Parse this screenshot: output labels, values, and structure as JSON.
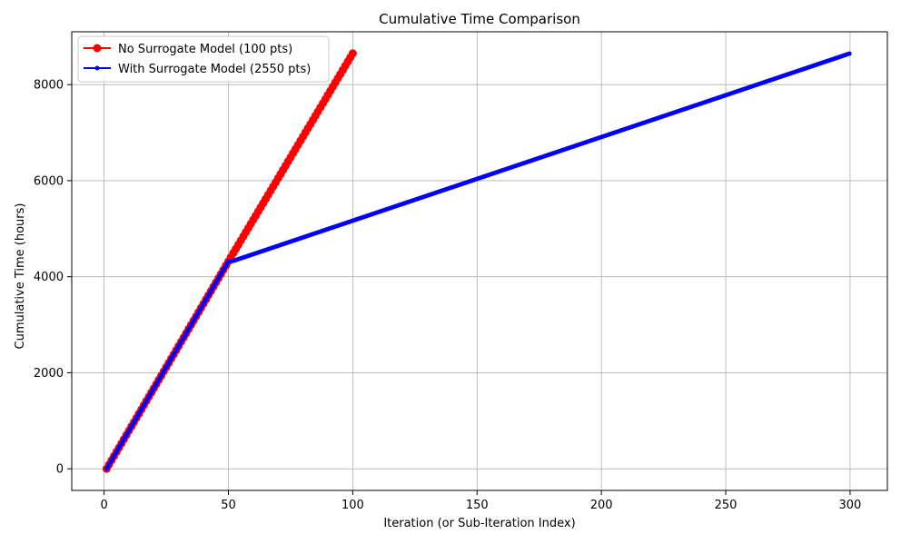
{
  "chart_data": {
    "type": "line",
    "title": "Cumulative Time Comparison",
    "xlabel": "Iteration (or Sub-Iteration Index)",
    "ylabel": "Cumulative Time (hours)",
    "xlim": [
      -13,
      315
    ],
    "ylim": [
      -450,
      9100
    ],
    "xticks": [
      0,
      50,
      100,
      150,
      200,
      250,
      300
    ],
    "yticks": [
      0,
      2000,
      4000,
      6000,
      8000
    ],
    "grid": true,
    "legend_position": "top-left",
    "series": [
      {
        "name": "No Surrogate Model (100 pts)",
        "color": "#ff0000",
        "marker": "circle",
        "marker_size": "large",
        "x_range": [
          1,
          100
        ],
        "num_points": 100,
        "anchors": [
          [
            1,
            0
          ],
          [
            50,
            4320
          ],
          [
            100,
            8650
          ]
        ]
      },
      {
        "name": "With Surrogate Model (2550 pts)",
        "color": "#0000ff",
        "marker": "circle",
        "marker_size": "small",
        "x_range": [
          1,
          300
        ],
        "num_points": 2550,
        "anchors": [
          [
            1,
            0
          ],
          [
            50,
            4320
          ],
          [
            52,
            4330
          ],
          [
            300,
            8650
          ]
        ]
      }
    ]
  }
}
